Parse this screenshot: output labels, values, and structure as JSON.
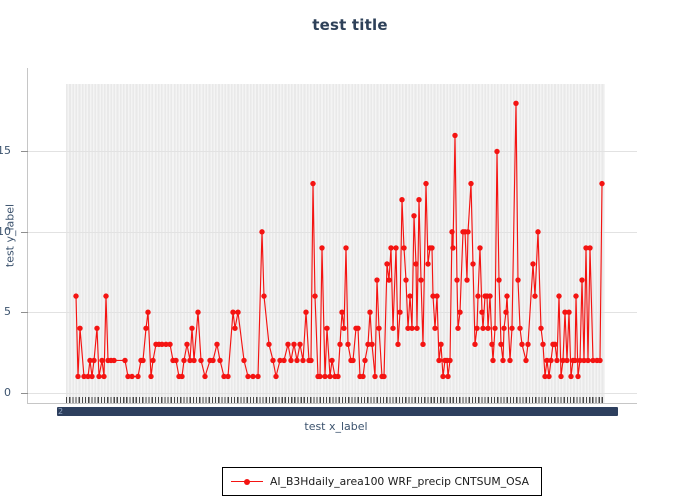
{
  "title": "test title",
  "y_axis": {
    "label": "test y_label",
    "ticks": [
      "0",
      "5",
      "10",
      "15"
    ]
  },
  "x_axis": {
    "label": "test x_label",
    "tick_labels": "dense overlapping rotated labels, illegible (rendered as solid navy smear)",
    "smear_hint": "2"
  },
  "legend": {
    "position": "bottom-center outside plot",
    "border": "#000000"
  },
  "colors": {
    "series_red": "#f41412",
    "title_navy": "#2e4159",
    "axis_text_navy": "#3c536e",
    "grid": "#e2e2e2",
    "band_stripe_dark": "#e9e9e9",
    "band_stripe_light": "#f4f4f4",
    "tick_smear_navy": "#2d3f5e"
  },
  "chart_data": {
    "type": "line",
    "title": "test title",
    "xlabel": "test x_label",
    "ylabel": "test y_label",
    "ylim": [
      -0.65,
      19.2
    ],
    "y_ticks": [
      0,
      5,
      10,
      15
    ],
    "grid": "horizontal major gridlines; fine vertical stripe band behind data",
    "legend_position": "bottom center, outside axes",
    "x_unit": "screen-px position (tick labels illegible in source)",
    "series": [
      {
        "name": "AI_B3Hdaily_area100 WRF_precip CNTSUM_OSA",
        "color": "#f41412",
        "marker": "circle",
        "points": [
          [
            76,
            6
          ],
          [
            78,
            1
          ],
          [
            80,
            4
          ],
          [
            84,
            1
          ],
          [
            88,
            1
          ],
          [
            90,
            2
          ],
          [
            92,
            1
          ],
          [
            94,
            2
          ],
          [
            97,
            4
          ],
          [
            99,
            1
          ],
          [
            102,
            2
          ],
          [
            104,
            1
          ],
          [
            106,
            6
          ],
          [
            108,
            2
          ],
          [
            111,
            2
          ],
          [
            114,
            2
          ],
          [
            125,
            2
          ],
          [
            128,
            1
          ],
          [
            132,
            1
          ],
          [
            138,
            1
          ],
          [
            141,
            2
          ],
          [
            143,
            2
          ],
          [
            146,
            4
          ],
          [
            148,
            5
          ],
          [
            151,
            1
          ],
          [
            153,
            2
          ],
          [
            156,
            3
          ],
          [
            159,
            3
          ],
          [
            162,
            3
          ],
          [
            166,
            3
          ],
          [
            170,
            3
          ],
          [
            173,
            2
          ],
          [
            176,
            2
          ],
          [
            179,
            1
          ],
          [
            182,
            1
          ],
          [
            184,
            2
          ],
          [
            187,
            3
          ],
          [
            190,
            2
          ],
          [
            192,
            4
          ],
          [
            194,
            2
          ],
          [
            198,
            5
          ],
          [
            201,
            2
          ],
          [
            205,
            1
          ],
          [
            210,
            2
          ],
          [
            213,
            2
          ],
          [
            217,
            3
          ],
          [
            220,
            2
          ],
          [
            224,
            1
          ],
          [
            228,
            1
          ],
          [
            233,
            5
          ],
          [
            235,
            4
          ],
          [
            238,
            5
          ],
          [
            244,
            2
          ],
          [
            248,
            1
          ],
          [
            253,
            1
          ],
          [
            258,
            1
          ],
          [
            262,
            10
          ],
          [
            264,
            6
          ],
          [
            269,
            3
          ],
          [
            273,
            2
          ],
          [
            276,
            1
          ],
          [
            280,
            2
          ],
          [
            284,
            2
          ],
          [
            288,
            3
          ],
          [
            291,
            2
          ],
          [
            294,
            3
          ],
          [
            297,
            2
          ],
          [
            300,
            3
          ],
          [
            303,
            2
          ],
          [
            306,
            5
          ],
          [
            309,
            2
          ],
          [
            311,
            2
          ],
          [
            313,
            13
          ],
          [
            315,
            6
          ],
          [
            318,
            1
          ],
          [
            320,
            1
          ],
          [
            322,
            9
          ],
          [
            325,
            1
          ],
          [
            327,
            4
          ],
          [
            330,
            1
          ],
          [
            332,
            2
          ],
          [
            335,
            1
          ],
          [
            338,
            1
          ],
          [
            340,
            3
          ],
          [
            342,
            5
          ],
          [
            344,
            4
          ],
          [
            346,
            9
          ],
          [
            348,
            3
          ],
          [
            351,
            2
          ],
          [
            353,
            2
          ],
          [
            356,
            4
          ],
          [
            358,
            4
          ],
          [
            360,
            1
          ],
          [
            363,
            1
          ],
          [
            365,
            2
          ],
          [
            368,
            3
          ],
          [
            370,
            5
          ],
          [
            372,
            3
          ],
          [
            375,
            1
          ],
          [
            377,
            7
          ],
          [
            379,
            4
          ],
          [
            382,
            1
          ],
          [
            384,
            1
          ],
          [
            387,
            8
          ],
          [
            389,
            7
          ],
          [
            391,
            9
          ],
          [
            393,
            4
          ],
          [
            396,
            9
          ],
          [
            398,
            3
          ],
          [
            400,
            5
          ],
          [
            402,
            12
          ],
          [
            404,
            9
          ],
          [
            406,
            7
          ],
          [
            408,
            4
          ],
          [
            410,
            6
          ],
          [
            412,
            4
          ],
          [
            414,
            11
          ],
          [
            416,
            8
          ],
          [
            417,
            4
          ],
          [
            419,
            12
          ],
          [
            421,
            7
          ],
          [
            423,
            3
          ],
          [
            426,
            13
          ],
          [
            428,
            8
          ],
          [
            430,
            9
          ],
          [
            432,
            9
          ],
          [
            433,
            6
          ],
          [
            435,
            4
          ],
          [
            437,
            6
          ],
          [
            439,
            2
          ],
          [
            441,
            3
          ],
          [
            443,
            1
          ],
          [
            445,
            2
          ],
          [
            447,
            2
          ],
          [
            448,
            1
          ],
          [
            450,
            2
          ],
          [
            452,
            10
          ],
          [
            453,
            9
          ],
          [
            455,
            16
          ],
          [
            457,
            7
          ],
          [
            458,
            4
          ],
          [
            460,
            5
          ],
          [
            463,
            10
          ],
          [
            465,
            10
          ],
          [
            467,
            7
          ],
          [
            468,
            10
          ],
          [
            471,
            13
          ],
          [
            473,
            8
          ],
          [
            475,
            3
          ],
          [
            477,
            4
          ],
          [
            478,
            6
          ],
          [
            480,
            9
          ],
          [
            482,
            5
          ],
          [
            483,
            4
          ],
          [
            485,
            6
          ],
          [
            487,
            6
          ],
          [
            488,
            4
          ],
          [
            490,
            6
          ],
          [
            492,
            3
          ],
          [
            493,
            2
          ],
          [
            495,
            4
          ],
          [
            497,
            15
          ],
          [
            499,
            7
          ],
          [
            501,
            3
          ],
          [
            503,
            2
          ],
          [
            504,
            4
          ],
          [
            506,
            5
          ],
          [
            507,
            6
          ],
          [
            510,
            2
          ],
          [
            512,
            4
          ],
          [
            516,
            18
          ],
          [
            518,
            7
          ],
          [
            520,
            4
          ],
          [
            522,
            3
          ],
          [
            526,
            2
          ],
          [
            528,
            3
          ],
          [
            533,
            8
          ],
          [
            535,
            6
          ],
          [
            538,
            10
          ],
          [
            541,
            4
          ],
          [
            543,
            3
          ],
          [
            545,
            1
          ],
          [
            547,
            2
          ],
          [
            549,
            1
          ],
          [
            551,
            2
          ],
          [
            553,
            3
          ],
          [
            555,
            3
          ],
          [
            557,
            2
          ],
          [
            559,
            6
          ],
          [
            561,
            1
          ],
          [
            563,
            2
          ],
          [
            565,
            5
          ],
          [
            567,
            2
          ],
          [
            569,
            5
          ],
          [
            571,
            1
          ],
          [
            573,
            2
          ],
          [
            575,
            2
          ],
          [
            576,
            6
          ],
          [
            578,
            1
          ],
          [
            580,
            2
          ],
          [
            582,
            7
          ],
          [
            584,
            2
          ],
          [
            586,
            9
          ],
          [
            588,
            2
          ],
          [
            590,
            9
          ],
          [
            593,
            2
          ],
          [
            597,
            2
          ],
          [
            600,
            2
          ],
          [
            602,
            13
          ]
        ]
      }
    ]
  }
}
